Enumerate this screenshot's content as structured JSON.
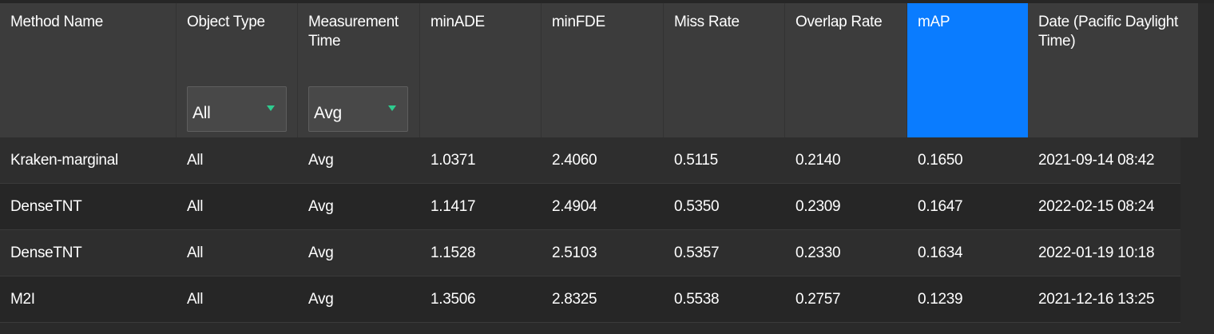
{
  "colors": {
    "header_bg": "#3c3c3c",
    "active_header_bg": "#0a7cff",
    "row_bg_a": "#2e2e2e",
    "row_bg_b": "#262626",
    "dropdown_caret": "#2ecc8f"
  },
  "header": {
    "columns": [
      "Method Name",
      "Object Type",
      "Measurement Time",
      "minADE",
      "minFDE",
      "Miss Rate",
      "Overlap Rate",
      "mAP",
      "Date (Pacific Daylight Time)"
    ],
    "active_sort_column": "mAP"
  },
  "filters": {
    "object_type": {
      "selected": "All",
      "icon": "dropdown-caret-icon"
    },
    "measurement_time": {
      "selected": "Avg",
      "icon": "dropdown-caret-icon"
    }
  },
  "rows": [
    [
      "Kraken-marginal",
      "All",
      "Avg",
      "1.0371",
      "2.4060",
      "0.5115",
      "0.2140",
      "0.1650",
      "2021-09-14 08:42"
    ],
    [
      "DenseTNT",
      "All",
      "Avg",
      "1.1417",
      "2.4904",
      "0.5350",
      "0.2309",
      "0.1647",
      "2022-02-15 08:24"
    ],
    [
      "DenseTNT",
      "All",
      "Avg",
      "1.1528",
      "2.5103",
      "0.5357",
      "0.2330",
      "0.1634",
      "2022-01-19 10:18"
    ],
    [
      "M2I",
      "All",
      "Avg",
      "1.3506",
      "2.8325",
      "0.5538",
      "0.2757",
      "0.1239",
      "2021-12-16 13:25"
    ]
  ]
}
